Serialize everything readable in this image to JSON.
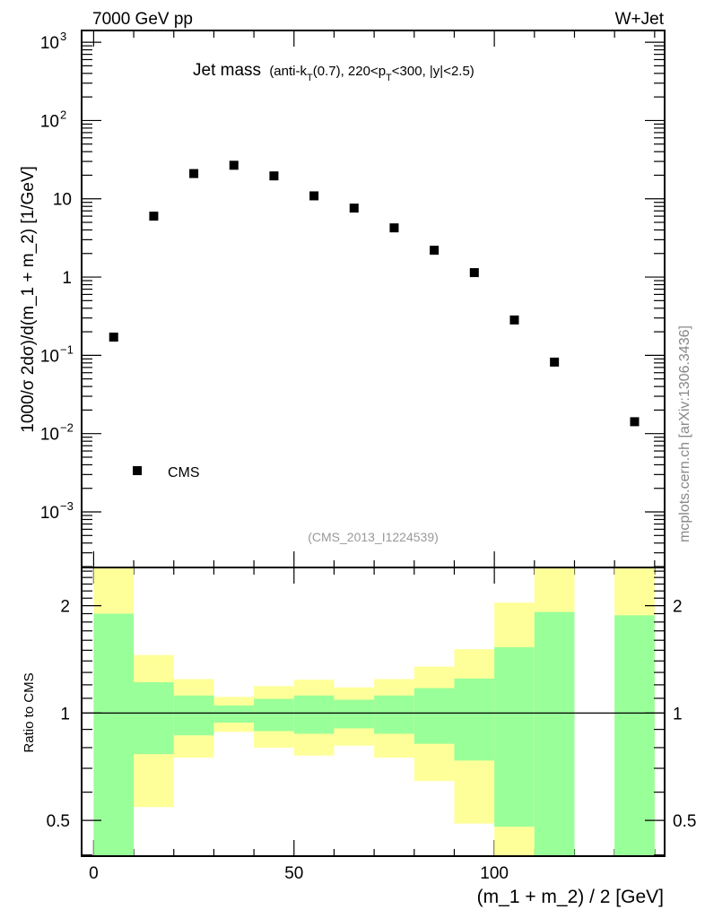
{
  "header": {
    "left": "7000 GeV pp",
    "right": "W+Jet"
  },
  "side_label": "mcplots.cern.ch [arXiv:1306.3436]",
  "chart_data": [
    {
      "type": "scatter",
      "title_main": "Jet mass",
      "title_sub_parts": [
        "(anti-k",
        "T",
        "(0.7), 220<p",
        "T",
        "<300, |y|<2.5)"
      ],
      "ylabel": "1000/σ 2dσ)/d(m_1 + m_2) [1/GeV]",
      "yscale": "log",
      "ylim_log10": [
        -3.71,
        3.15
      ],
      "xlim": [
        -3,
        142.5
      ],
      "ytick_labels": [
        {
          "base": "10",
          "exp": "3",
          "value": 1000
        },
        {
          "base": "10",
          "exp": "2",
          "value": 100
        },
        {
          "base": "10",
          "exp": "",
          "value": 10
        },
        {
          "base": "1",
          "exp": "",
          "value": 1
        },
        {
          "base": "10",
          "exp": "−1",
          "value": 0.1
        },
        {
          "base": "10",
          "exp": "−2",
          "value": 0.01
        },
        {
          "base": "10",
          "exp": "−3",
          "value": 0.001
        }
      ],
      "legend": {
        "label": "CMS",
        "position": "bottom-left"
      },
      "watermark": "(CMS_2013_I1224539)",
      "series": [
        {
          "name": "CMS",
          "x": [
            5,
            15,
            25,
            35,
            45,
            55,
            65,
            75,
            85,
            95,
            105,
            115,
            135
          ],
          "y": [
            0.171,
            6.0,
            21.0,
            26.8,
            19.6,
            10.9,
            7.6,
            4.25,
            2.2,
            1.14,
            0.283,
            0.082,
            0.0142
          ]
        }
      ]
    },
    {
      "type": "area",
      "ylabel": "Ratio to CMS",
      "xlabel": "(m_1 + m_2) / 2 [GeV]",
      "yscale": "log",
      "ylim": [
        0.397,
        2.56
      ],
      "xlim": [
        -3,
        142.5
      ],
      "xticks": [
        {
          "value": 0,
          "label": "0"
        },
        {
          "value": 50,
          "label": "50"
        },
        {
          "value": 100,
          "label": "100"
        }
      ],
      "yticks": [
        {
          "value": 2,
          "label": "2"
        },
        {
          "value": 1,
          "label": "1"
        },
        {
          "value": 0.5,
          "label": "0.5"
        }
      ],
      "reference_line": 1,
      "colors": {
        "green": "#99ff99",
        "yellow": "#ffff99"
      },
      "bins": [
        {
          "lo": 0,
          "hi": 10,
          "yellow": [
            0.3,
            3.0
          ],
          "green": [
            0.3,
            1.9
          ]
        },
        {
          "lo": 10,
          "hi": 20,
          "yellow": [
            0.545,
            1.455
          ],
          "green": [
            0.767,
            1.22
          ]
        },
        {
          "lo": 20,
          "hi": 30,
          "yellow": [
            0.75,
            1.245
          ],
          "green": [
            0.866,
            1.12
          ]
        },
        {
          "lo": 30,
          "hi": 40,
          "yellow": [
            0.886,
            1.11
          ],
          "green": [
            0.94,
            1.05
          ]
        },
        {
          "lo": 40,
          "hi": 50,
          "yellow": [
            0.8,
            1.19
          ],
          "green": [
            0.89,
            1.096
          ]
        },
        {
          "lo": 50,
          "hi": 60,
          "yellow": [
            0.76,
            1.24
          ],
          "green": [
            0.875,
            1.12
          ]
        },
        {
          "lo": 60,
          "hi": 70,
          "yellow": [
            0.81,
            1.18
          ],
          "green": [
            0.906,
            1.09
          ]
        },
        {
          "lo": 70,
          "hi": 80,
          "yellow": [
            0.75,
            1.245
          ],
          "green": [
            0.875,
            1.12
          ]
        },
        {
          "lo": 80,
          "hi": 90,
          "yellow": [
            0.645,
            1.35
          ],
          "green": [
            0.82,
            1.175
          ]
        },
        {
          "lo": 90,
          "hi": 100,
          "yellow": [
            0.49,
            1.51
          ],
          "green": [
            0.736,
            1.25
          ]
        },
        {
          "lo": 100,
          "hi": 110,
          "yellow": [
            0.3,
            2.04
          ],
          "green": [
            0.48,
            1.53
          ]
        },
        {
          "lo": 110,
          "hi": 120,
          "yellow": [
            0.3,
            3.0
          ],
          "green": [
            0.3,
            1.92
          ]
        },
        {
          "lo": 130,
          "hi": 140,
          "yellow": [
            0.3,
            3.0
          ],
          "green": [
            0.3,
            1.88
          ]
        }
      ]
    }
  ]
}
